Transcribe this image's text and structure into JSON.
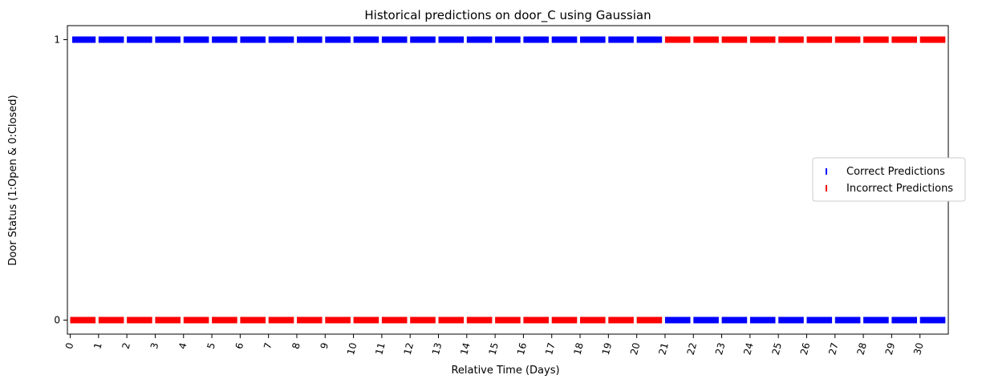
{
  "chart_data": {
    "type": "scatter",
    "title": "Historical predictions on door_C using Gaussian",
    "xlabel": "Relative Time (Days)",
    "ylabel": "Door Status (1:Open & 0:Closed)",
    "xlim": [
      -0.1,
      31.0
    ],
    "ylim": [
      -0.05,
      1.05
    ],
    "yticks": [
      0,
      1
    ],
    "xticks": [
      0,
      1,
      2,
      3,
      4,
      5,
      6,
      7,
      8,
      9,
      10,
      11,
      12,
      13,
      14,
      15,
      16,
      17,
      18,
      19,
      20,
      21,
      22,
      23,
      24,
      25,
      26,
      27,
      28,
      29,
      30
    ],
    "xtick_rotation": 75,
    "legend_position": "center-right",
    "colors": {
      "correct": "#0000ff",
      "incorrect": "#ff0000"
    },
    "series": [
      {
        "name": "Correct Predictions",
        "color": "#0000ff",
        "segments": [
          {
            "y": 1,
            "x_start": 0.07,
            "x_end": 21.0,
            "interval_days": 0.016667
          },
          {
            "y": 0,
            "x_start": 21.0,
            "x_end": 31.0,
            "interval_days": 0.016667
          }
        ]
      },
      {
        "name": "Incorrect Predictions",
        "color": "#ff0000",
        "segments": [
          {
            "y": 0,
            "x_start": 0.0,
            "x_end": 21.0,
            "interval_days": 0.016667
          },
          {
            "y": 1,
            "x_start": 21.0,
            "x_end": 31.0,
            "interval_days": 0.016667
          }
        ]
      }
    ],
    "daily_gap": {
      "start_hour": 21.5,
      "end_hour": 24.0
    }
  }
}
